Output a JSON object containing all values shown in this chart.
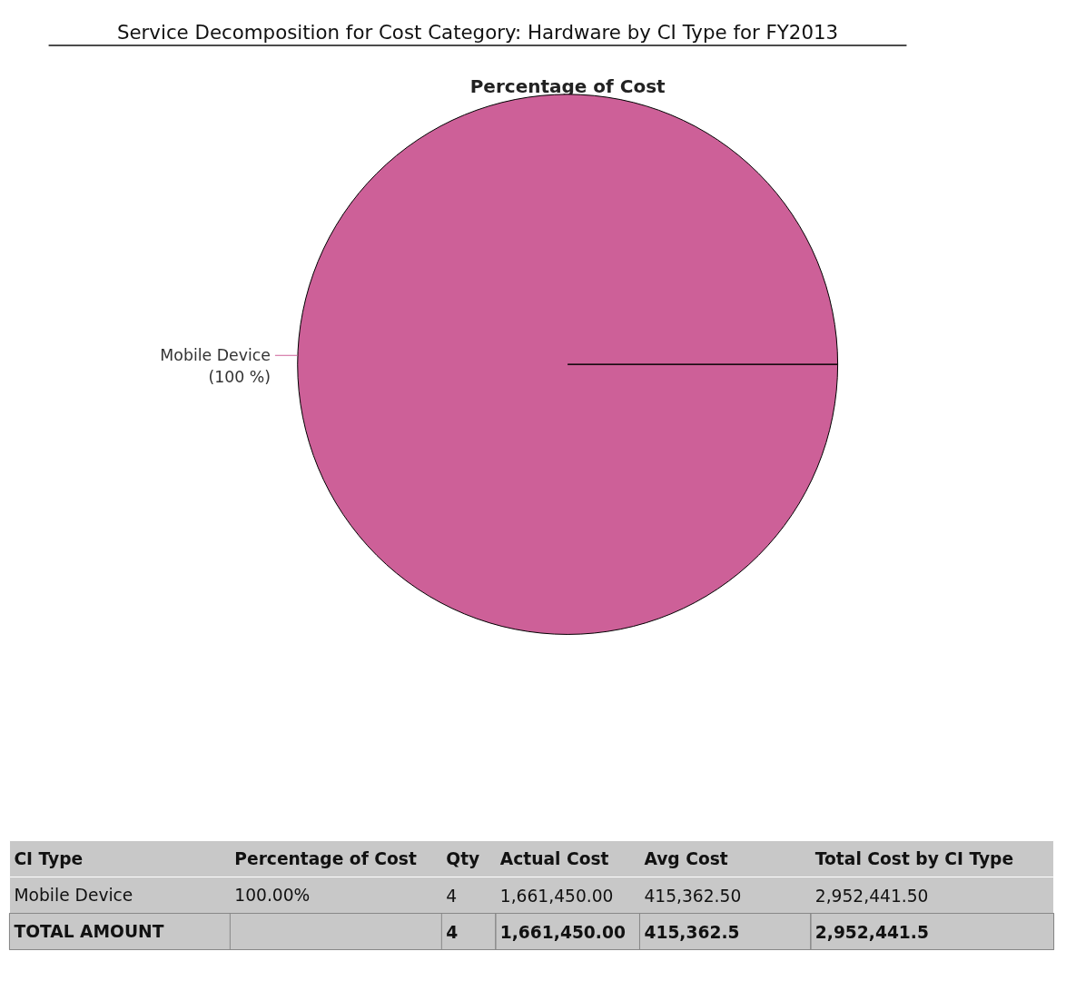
{
  "chart_data": [
    {
      "type": "pie",
      "title": "Service Decomposition for Cost Category: Hardware by CI Type for FY2013",
      "subtitle": "Percentage of Cost",
      "categories": [
        "Mobile Device"
      ],
      "values": [
        100
      ],
      "colors": [
        "#cd6098"
      ],
      "value_labels": [
        "(100 %)"
      ]
    },
    {
      "type": "other",
      "annotations": [
        "CI Type",
        "Percentage of Cost",
        "Qty",
        "Actual Cost",
        "Avg Cost",
        "Total Cost by CI Type",
        "Mobile Device",
        "100.00%",
        "4",
        "1,661,450.00",
        "415,362.50",
        "2,952,441.50",
        "TOTAL AMOUNT",
        null,
        "4",
        "1,661,450.00",
        "415,362.5",
        "2,952,441.5"
      ]
    }
  ]
}
